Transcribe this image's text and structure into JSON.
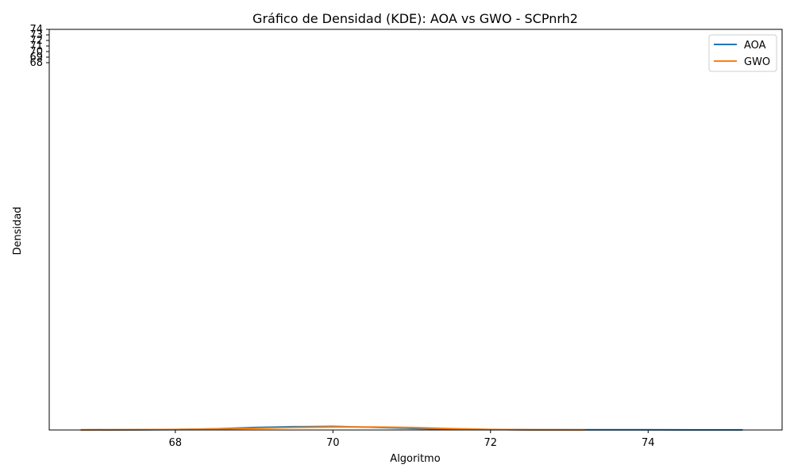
{
  "chart_data": {
    "type": "line",
    "title": "Gráfico de Densidad (KDE): AOA vs GWO - SCPnrh2",
    "xlabel": "Algoritmo",
    "ylabel": "Densidad",
    "xlim": [
      66.4,
      75.7
    ],
    "x_ticks": [
      "68",
      "70",
      "72",
      "74"
    ],
    "y_ticks": [
      "68",
      "69",
      "70",
      "71",
      "72",
      "73",
      "74"
    ],
    "ylim": [
      0,
      74
    ],
    "legend": "top-right",
    "grid": false,
    "series": [
      {
        "name": "AOA",
        "color": "#1f77b4",
        "x": [
          66.8,
          67.5,
          68.0,
          68.5,
          69.0,
          69.5,
          70.0,
          70.5,
          71.0,
          71.5,
          72.0,
          72.5,
          73.0,
          73.5,
          74.0,
          74.5,
          75.2
        ],
        "y": [
          0.02,
          0.04,
          0.08,
          0.2,
          0.45,
          0.6,
          0.65,
          0.5,
          0.3,
          0.15,
          0.08,
          0.04,
          0.03,
          0.03,
          0.03,
          0.02,
          0.01
        ]
      },
      {
        "name": "GWO",
        "color": "#ff7f0e",
        "x": [
          66.8,
          67.5,
          68.0,
          68.5,
          69.0,
          69.5,
          70.0,
          70.5,
          71.0,
          71.5,
          72.0,
          72.5,
          73.2
        ],
        "y": [
          0.02,
          0.05,
          0.1,
          0.18,
          0.3,
          0.45,
          0.55,
          0.55,
          0.45,
          0.25,
          0.1,
          0.04,
          0.02
        ]
      }
    ]
  }
}
